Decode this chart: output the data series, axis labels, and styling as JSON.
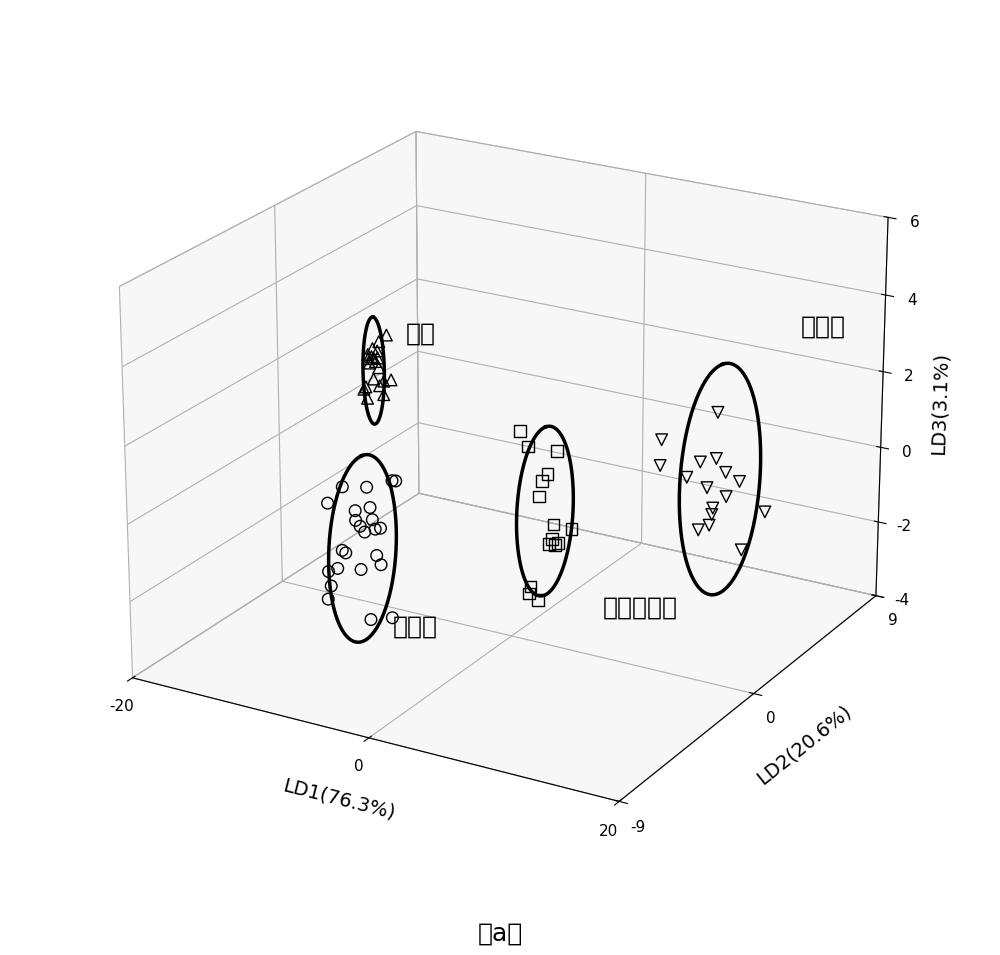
{
  "title": "（a）",
  "xlabel": "LD1(76.3%)",
  "ylabel": "LD2(20.6%)",
  "zlabel": "LD3(3.1%)",
  "xlim": [
    -20,
    20
  ],
  "ylim": [
    -9,
    9
  ],
  "zlim": [
    -4,
    6
  ],
  "xticks": [
    -20,
    0,
    20
  ],
  "yticks": [
    -9,
    0,
    9
  ],
  "zticks": [
    -4,
    -2,
    0,
    2,
    4,
    6
  ],
  "label_mature": "成熟",
  "label_light_mature": "浅成熟",
  "label_fully_immature": "完全未成熟",
  "label_over_mature": "过成熟",
  "clusters": {
    "mature": {
      "marker": "^",
      "x": [
        0.5,
        0.8,
        -0.2,
        0.3,
        1.0,
        -0.5,
        0.6,
        -0.3,
        0.2,
        0.9,
        -0.1,
        0.4,
        -0.6,
        0.7,
        0.1,
        -0.4,
        0.8,
        -0.2,
        0.5,
        0.3
      ],
      "y": [
        -8.5,
        -8.8,
        -8.2,
        -9.0,
        -8.6,
        -8.4,
        -8.9,
        -8.7,
        -8.3,
        -8.1,
        -8.5,
        -8.8,
        -8.6,
        -8.2,
        -8.9,
        -8.4,
        -8.7,
        -8.3,
        -8.6,
        -8.1
      ],
      "z": [
        5.8,
        5.5,
        5.2,
        5.6,
        4.9,
        5.3,
        5.0,
        4.7,
        5.1,
        4.8,
        5.4,
        5.7,
        4.6,
        5.9,
        4.5,
        5.2,
        4.8,
        5.3,
        5.6,
        4.4
      ]
    },
    "light_mature": {
      "marker": "o",
      "x": [
        -12,
        -13,
        -14,
        -11,
        -15,
        -12.5,
        -13.5,
        -14.5,
        -11.5,
        -10.5,
        -12,
        -13,
        -14,
        -15,
        -11,
        -12.5,
        -13.5,
        -14.5,
        -11.5,
        -10,
        -15.5,
        -12,
        -13,
        -14
      ],
      "y": [
        -1,
        0,
        1,
        -0.5,
        0.5,
        -1.5,
        0.8,
        -0.8,
        1.2,
        -1.2,
        0.3,
        -0.3,
        1.5,
        -0.6,
        0.6,
        -1.8,
        1.0,
        -1.0,
        0.2,
        -0.2,
        0.7,
        -0.7,
        1.3,
        -1.3
      ],
      "z": [
        -1.5,
        -2.0,
        -2.5,
        -1.8,
        -3.0,
        -2.2,
        -1.2,
        -3.5,
        -1.0,
        -4.0,
        -2.8,
        -1.5,
        -2.3,
        -3.2,
        -0.8,
        -2.6,
        -1.8,
        -3.8,
        -2.0,
        -4.2,
        -1.3,
        -2.9,
        -3.4,
        -1.1
      ]
    },
    "fully_immature": {
      "marker": "s",
      "x": [
        2,
        3,
        1,
        4,
        2.5,
        3.5,
        1.5,
        4.5,
        2,
        3,
        1,
        4,
        2.5,
        3.5,
        5
      ],
      "y": [
        -1,
        0,
        1,
        -0.5,
        0.5,
        -1.5,
        0.8,
        -0.8,
        1.5,
        -1.2,
        0.3,
        -0.3,
        1.0,
        -1.0,
        0.0
      ],
      "z": [
        1.8,
        0.5,
        -0.5,
        -1.0,
        -1.5,
        -2.0,
        0.0,
        -0.5,
        -1.8,
        -2.3,
        1.0,
        -1.2,
        0.8,
        -2.5,
        -0.8
      ]
    },
    "over_mature": {
      "marker": "v",
      "x": [
        12,
        13,
        14,
        11,
        15,
        12.5,
        13.5,
        11.5,
        10.5,
        12,
        13,
        14,
        15,
        11,
        12.5,
        13.5
      ],
      "y": [
        2,
        3,
        4,
        1,
        5,
        2.5,
        3.5,
        4.5,
        1.5,
        6,
        2,
        3,
        1.5,
        4.5,
        3,
        2.5
      ],
      "z": [
        0.5,
        -0.5,
        0.0,
        1.0,
        -1.0,
        0.8,
        -0.3,
        0.3,
        1.5,
        -2.5,
        -0.8,
        0.5,
        2.5,
        -1.5,
        0.0,
        -0.5
      ]
    }
  },
  "elev": 22,
  "azim": -60
}
